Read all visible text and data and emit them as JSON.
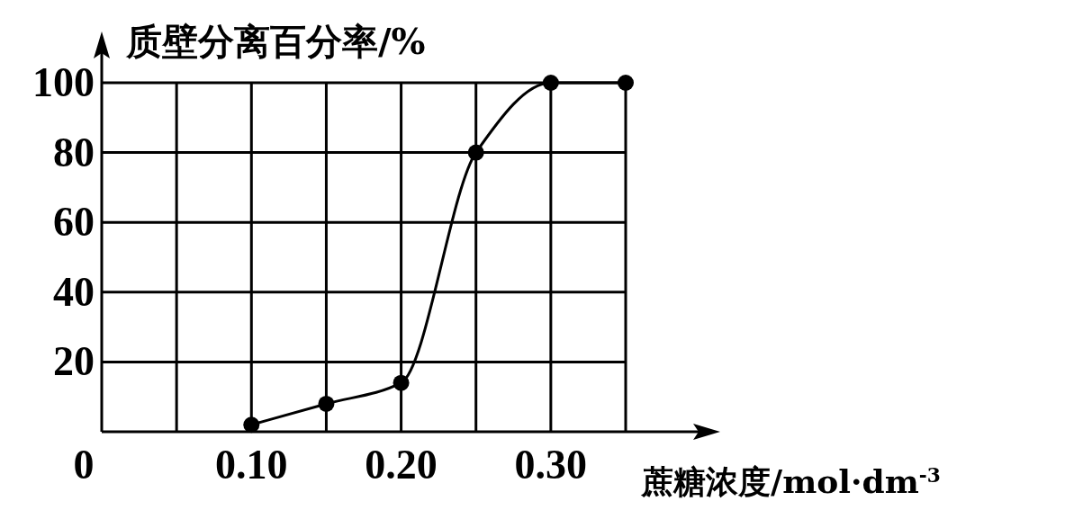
{
  "chart_data": {
    "type": "line",
    "ylabel": "质壁分离百分率/%",
    "xlabel": "蔗糖浓度/mol·dm$^{-3}$",
    "x": [
      0.1,
      0.15,
      0.2,
      0.25,
      0.3,
      0.35
    ],
    "series": [
      {
        "color": "#000000",
        "values": [
          2,
          8,
          14,
          80,
          100,
          100
        ]
      }
    ],
    "xlim": [
      0,
      0.35
    ],
    "ylim": [
      0,
      100
    ],
    "xticks": [
      {
        "value": 0,
        "label": "0"
      },
      {
        "value": 0.05,
        "label": null
      },
      {
        "value": 0.1,
        "label": "0.10"
      },
      {
        "value": 0.15,
        "label": null
      },
      {
        "value": 0.2,
        "label": "0.20"
      },
      {
        "value": 0.25,
        "label": null
      },
      {
        "value": 0.3,
        "label": "0.30"
      },
      {
        "value": 0.35,
        "label": null
      }
    ],
    "yticks": [
      {
        "value": 0,
        "label": null
      },
      20,
      40,
      60,
      80,
      100
    ],
    "grid": true,
    "marker": "circle",
    "line_style": "solid"
  }
}
